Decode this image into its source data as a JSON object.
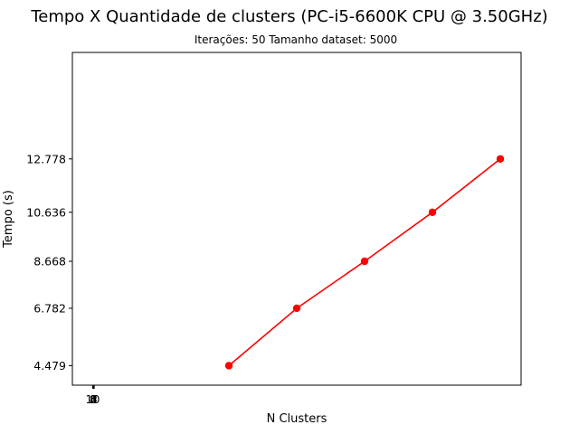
{
  "chart_data": {
    "type": "line",
    "title": "Tempo X Quantidade de  clusters (PC-i5-6600K CPU @ 3.50GHz)",
    "subtitle": "Iterações: 50  Tamanho dataset: 5000",
    "xlabel": "N Clusters",
    "ylabel": "Tempo (s)",
    "x_ticks": [
      "10",
      "8",
      "6",
      "4",
      "2"
    ],
    "y_ticks": [
      4.479,
      6.782,
      8.668,
      10.636,
      12.778
    ],
    "y_tick_labels": [
      "4.479",
      "6.782",
      "8.668",
      "10.636",
      "12.778"
    ],
    "series": [
      {
        "color": "#ff0000",
        "marker": "circle",
        "points": [
          {
            "x": 2,
            "y": 4.479
          },
          {
            "x": 4,
            "y": 6.782
          },
          {
            "x": 6,
            "y": 8.668
          },
          {
            "x": 8,
            "y": 10.636
          },
          {
            "x": 10,
            "y": 12.778
          }
        ]
      }
    ],
    "grid": false,
    "legend": "none"
  }
}
